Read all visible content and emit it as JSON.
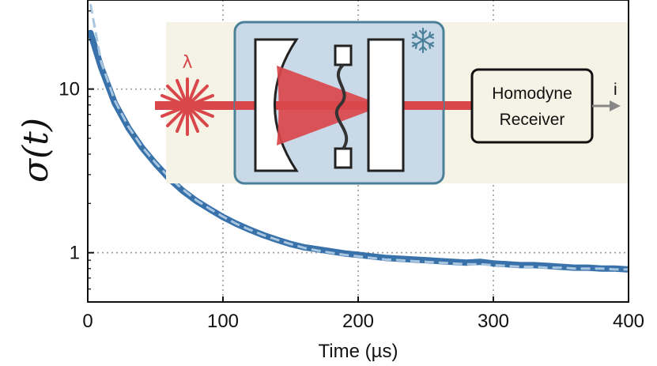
{
  "chart_data": {
    "type": "line",
    "xlabel": "Time (µs)",
    "ylabel": "σ(t)",
    "xlim": [
      0,
      400
    ],
    "ylim": [
      0.5,
      35
    ],
    "yscale": "log",
    "grid": true,
    "x_ticks": [
      0,
      100,
      200,
      300,
      400
    ],
    "x_tick_labels": [
      "0",
      "100",
      "200",
      "300",
      "400"
    ],
    "y_ticks": [
      1,
      10
    ],
    "y_tick_labels": [
      "1",
      "10"
    ],
    "series": [
      {
        "style": "solid-band",
        "color": "#2e6aa6",
        "x": [
          2,
          10,
          20,
          30,
          40,
          50,
          60,
          70,
          80,
          90,
          100,
          110,
          120,
          130,
          140,
          150,
          160,
          170,
          180,
          190,
          200,
          210,
          220,
          230,
          240,
          250,
          260,
          270,
          280,
          290,
          300,
          310,
          320,
          330,
          340,
          350,
          360,
          370,
          380,
          390,
          400
        ],
        "values": [
          22,
          13.5,
          8.2,
          5.8,
          4.4,
          3.5,
          2.85,
          2.4,
          2.08,
          1.85,
          1.65,
          1.5,
          1.38,
          1.28,
          1.2,
          1.13,
          1.08,
          1.05,
          1.02,
          0.99,
          0.97,
          0.95,
          0.93,
          0.92,
          0.91,
          0.9,
          0.89,
          0.88,
          0.87,
          0.88,
          0.86,
          0.85,
          0.84,
          0.84,
          0.83,
          0.82,
          0.81,
          0.81,
          0.8,
          0.8,
          0.79
        ]
      },
      {
        "style": "dashed",
        "color": "#a8c6e0",
        "x": [
          2,
          10,
          20,
          30,
          40,
          50,
          60,
          70,
          80,
          90,
          100,
          110,
          120,
          130,
          140,
          150,
          160,
          170,
          180,
          190,
          200,
          210,
          220,
          230,
          240,
          250,
          260,
          270,
          280,
          290,
          300,
          310,
          320,
          330,
          340,
          350,
          360,
          370,
          380,
          390,
          400
        ],
        "values": [
          33,
          14.5,
          8.5,
          5.9,
          4.45,
          3.55,
          2.9,
          2.45,
          2.1,
          1.86,
          1.66,
          1.5,
          1.38,
          1.28,
          1.2,
          1.13,
          1.07,
          1.03,
          1.0,
          0.97,
          0.95,
          0.93,
          0.91,
          0.9,
          0.89,
          0.88,
          0.87,
          0.86,
          0.85,
          0.85,
          0.84,
          0.83,
          0.82,
          0.82,
          0.81,
          0.81,
          0.8,
          0.8,
          0.8,
          0.79,
          0.79
        ]
      }
    ],
    "inset": {
      "laser_label": "λ",
      "receiver_label_line1": "Homodyne",
      "receiver_label_line2": "Receiver",
      "output_label": "i",
      "snowflake_icon": "snowflake-icon",
      "colors": {
        "laser": "#d9474b",
        "cryostat_fill": "#c9d9e8",
        "cryostat_border": "#4a8199",
        "background": "#f4f3e6"
      }
    }
  }
}
